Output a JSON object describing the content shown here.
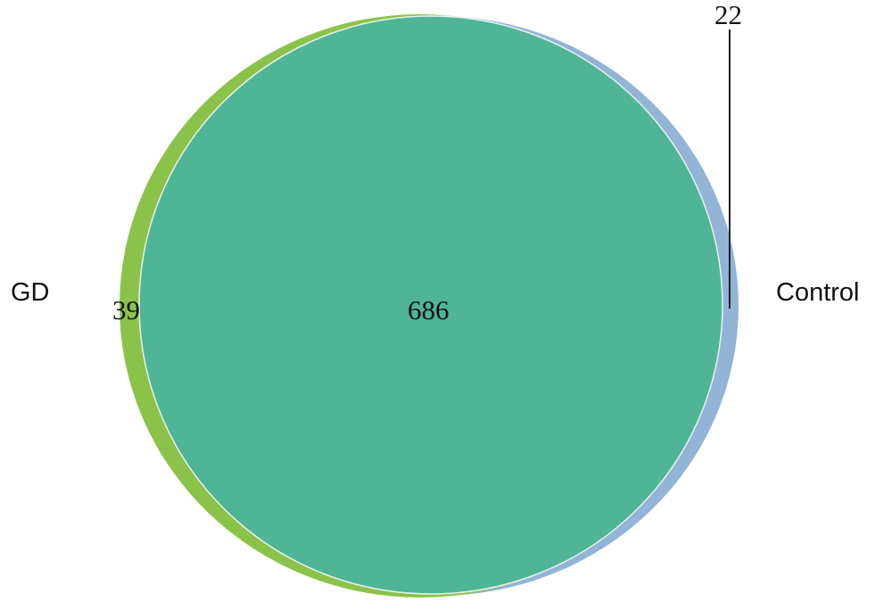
{
  "venn": {
    "sets": [
      {
        "name": "GD",
        "color": "#8bc34a"
      },
      {
        "name": "Control",
        "color": "#92b4d6"
      }
    ],
    "overlap_color": "#4fb596",
    "regions": {
      "gd_only": "39",
      "both": "686",
      "control_only": "22"
    }
  }
}
